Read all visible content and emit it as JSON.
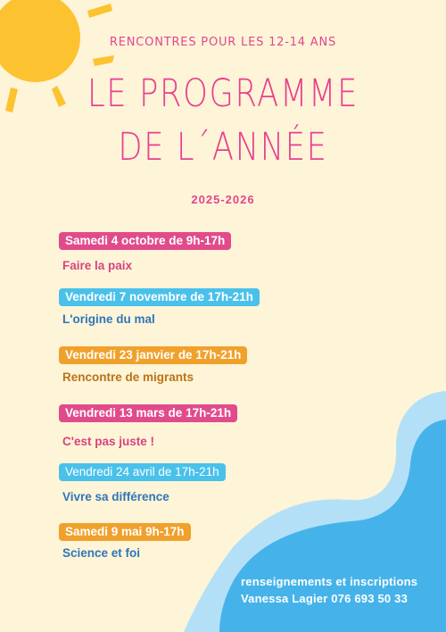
{
  "header": {
    "subtitle": "RENCONTRES POUR LES 12-14 ANS",
    "title_line1": "LE PROGRAMME",
    "title_line2": "DE L´ANNÉE",
    "years": "2025-2026"
  },
  "events": [
    {
      "date": "Samedi 4 octobre de 9h-17h",
      "title": "Faire la paix"
    },
    {
      "date": "Vendredi 7 novembre de 17h-21h",
      "title": "L'origine du mal"
    },
    {
      "date": "Vendredi 23 janvier de 17h-21h",
      "title": "Rencontre de migrants"
    },
    {
      "date": "Vendredi 13 mars de 17h-21h",
      "title": "C'est pas juste !"
    },
    {
      "date": "Vendredi 24 avril de 17h-21h",
      "title": "Vivre sa différence"
    },
    {
      "date": "Samedi 9 mai 9h-17h",
      "title": "Science et foi"
    }
  ],
  "contact": {
    "line1": "renseignements et inscriptions",
    "line2": "Vanessa Lagier 076 693 50 33"
  },
  "colors": {
    "background": "#fef4d7",
    "pink": "#e14b8c",
    "blue": "#49c1ea",
    "orange": "#f0a12c",
    "sun": "#fdc230",
    "wave_dark": "#45b3ea",
    "wave_light": "#8fd3f4"
  },
  "icons": [
    "sun-icon",
    "wave-decoration"
  ]
}
